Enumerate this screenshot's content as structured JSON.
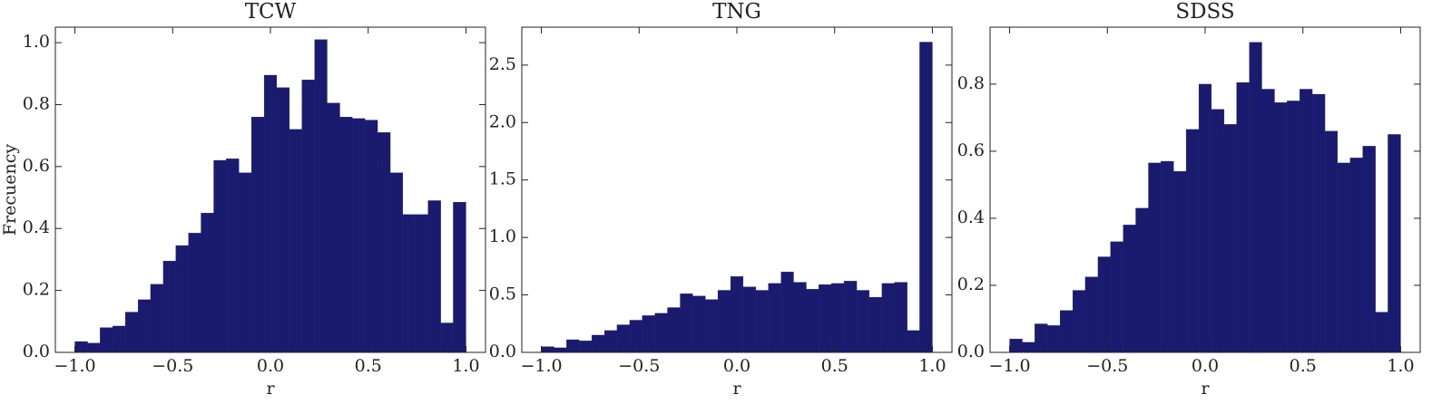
{
  "chart_data": [
    {
      "type": "histogram",
      "title": "TCW",
      "xlabel": "r",
      "ylabel": "Frecuency",
      "color": "#1a1a6e",
      "bins": [
        -1,
        -0.935,
        -0.871,
        -0.806,
        -0.742,
        -0.677,
        -0.613,
        -0.548,
        -0.484,
        -0.419,
        -0.355,
        -0.29,
        -0.226,
        -0.161,
        -0.097,
        -0.032,
        0.032,
        0.097,
        0.161,
        0.226,
        0.29,
        0.355,
        0.419,
        0.484,
        0.548,
        0.613,
        0.677,
        0.742,
        0.806,
        0.871,
        0.935,
        1
      ],
      "values": [
        0.035,
        0.03,
        0.08,
        0.085,
        0.13,
        0.17,
        0.22,
        0.295,
        0.345,
        0.385,
        0.45,
        0.62,
        0.625,
        0.58,
        0.76,
        0.895,
        0.855,
        0.72,
        0.88,
        1.01,
        0.805,
        0.76,
        0.755,
        0.75,
        0.71,
        0.58,
        0.445,
        0.445,
        0.49,
        0.095,
        0.485
      ],
      "xlim": [
        -1.1,
        1.1
      ],
      "ylim": [
        0,
        1.05
      ],
      "xticks": [
        {
          "value": -1,
          "label": "−1.0"
        },
        {
          "value": -0.5,
          "label": "−0.5"
        },
        {
          "value": 0,
          "label": "0.0"
        },
        {
          "value": 0.5,
          "label": "0.5"
        },
        {
          "value": 1,
          "label": "1.0"
        }
      ],
      "yticks": [
        {
          "value": 0,
          "label": "0.0"
        },
        0.2,
        0.4,
        0.6,
        0.8,
        {
          "value": 1,
          "label": "1.0"
        }
      ]
    },
    {
      "type": "histogram",
      "title": "TNG",
      "xlabel": "r",
      "color": "#1a1a6e",
      "bins": [
        -1,
        -0.935,
        -0.871,
        -0.806,
        -0.742,
        -0.677,
        -0.613,
        -0.548,
        -0.484,
        -0.419,
        -0.355,
        -0.29,
        -0.226,
        -0.161,
        -0.097,
        -0.032,
        0.032,
        0.097,
        0.161,
        0.226,
        0.29,
        0.355,
        0.419,
        0.484,
        0.548,
        0.613,
        0.677,
        0.742,
        0.806,
        0.871,
        0.935,
        1
      ],
      "values": [
        0.05,
        0.04,
        0.11,
        0.1,
        0.15,
        0.19,
        0.24,
        0.28,
        0.32,
        0.34,
        0.39,
        0.51,
        0.49,
        0.46,
        0.54,
        0.66,
        0.57,
        0.54,
        0.6,
        0.7,
        0.61,
        0.55,
        0.59,
        0.6,
        0.62,
        0.54,
        0.48,
        0.6,
        0.61,
        0.19,
        2.7
      ],
      "xlim": [
        -1.1,
        1.1
      ],
      "ylim": [
        0,
        2.83
      ],
      "xticks": [
        {
          "value": -1,
          "label": "−1.0"
        },
        {
          "value": -0.5,
          "label": "−0.5"
        },
        {
          "value": 0,
          "label": "0.0"
        },
        {
          "value": 0.5,
          "label": "0.5"
        },
        {
          "value": 1,
          "label": "1.0"
        }
      ],
      "yticks": [
        {
          "value": 0,
          "label": "0.0"
        },
        0.5,
        {
          "value": 1,
          "label": "1.0"
        },
        1.5,
        {
          "value": 2,
          "label": "2.0"
        },
        2.5
      ]
    },
    {
      "type": "histogram",
      "title": "SDSS",
      "xlabel": "r",
      "color": "#1a1a6e",
      "bins": [
        -1,
        -0.935,
        -0.871,
        -0.806,
        -0.742,
        -0.677,
        -0.613,
        -0.548,
        -0.484,
        -0.419,
        -0.355,
        -0.29,
        -0.226,
        -0.161,
        -0.097,
        -0.032,
        0.032,
        0.097,
        0.161,
        0.226,
        0.29,
        0.355,
        0.419,
        0.484,
        0.548,
        0.613,
        0.677,
        0.742,
        0.806,
        0.871,
        0.935,
        1
      ],
      "values": [
        0.04,
        0.03,
        0.085,
        0.08,
        0.125,
        0.185,
        0.225,
        0.285,
        0.33,
        0.38,
        0.43,
        0.565,
        0.57,
        0.54,
        0.665,
        0.8,
        0.725,
        0.68,
        0.805,
        0.925,
        0.785,
        0.745,
        0.75,
        0.785,
        0.77,
        0.66,
        0.565,
        0.58,
        0.615,
        0.12,
        0.65
      ],
      "xlim": [
        -1.1,
        1.1
      ],
      "ylim": [
        0,
        0.97
      ],
      "xticks": [
        {
          "value": -1,
          "label": "−1.0"
        },
        {
          "value": -0.5,
          "label": "−0.5"
        },
        {
          "value": 0,
          "label": "0.0"
        },
        {
          "value": 0.5,
          "label": "0.5"
        },
        {
          "value": 1,
          "label": "1.0"
        }
      ],
      "yticks": [
        {
          "value": 0,
          "label": "0.0"
        },
        0.2,
        0.4,
        0.6,
        0.8
      ]
    }
  ]
}
